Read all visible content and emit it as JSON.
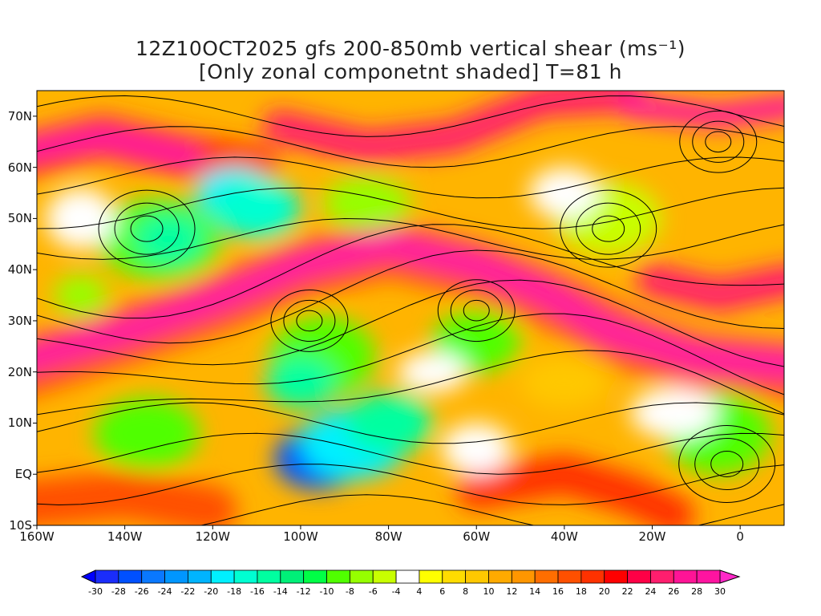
{
  "title": {
    "line1": "12Z10OCT2025 gfs 200-850mb vertical shear (ms⁻¹)",
    "line2": "[Only zonal componetnt shaded] T=81 h"
  },
  "map": {
    "lon_range": [
      -160,
      10
    ],
    "lat_range": [
      -10,
      75
    ],
    "lat_ticks": [
      {
        "value": 70,
        "label": "70N"
      },
      {
        "value": 60,
        "label": "60N"
      },
      {
        "value": 50,
        "label": "50N"
      },
      {
        "value": 40,
        "label": "40N"
      },
      {
        "value": 30,
        "label": "30N"
      },
      {
        "value": 20,
        "label": "20N"
      },
      {
        "value": 10,
        "label": "10N"
      },
      {
        "value": 0,
        "label": "EQ"
      },
      {
        "value": -10,
        "label": "10S"
      }
    ],
    "lon_ticks": [
      {
        "value": -160,
        "label": "160W"
      },
      {
        "value": -140,
        "label": "140W"
      },
      {
        "value": -120,
        "label": "120W"
      },
      {
        "value": -100,
        "label": "100W"
      },
      {
        "value": -80,
        "label": "80W"
      },
      {
        "value": -60,
        "label": "60W"
      },
      {
        "value": -40,
        "label": "40W"
      },
      {
        "value": -20,
        "label": "20W"
      },
      {
        "value": 0,
        "label": "0"
      }
    ]
  },
  "colorbar": {
    "labels": [
      "-30",
      "-28",
      "-26",
      "-24",
      "-22",
      "-20",
      "-18",
      "-16",
      "-14",
      "-12",
      "-10",
      "-8",
      "-6",
      "-4",
      "4",
      "6",
      "8",
      "10",
      "12",
      "14",
      "16",
      "18",
      "20",
      "22",
      "24",
      "26",
      "28",
      "30"
    ],
    "colors": [
      "#1a2dfa",
      "#0050ff",
      "#0a78ff",
      "#0096ff",
      "#00b4ff",
      "#00f0ff",
      "#00ffd2",
      "#00ffa0",
      "#00f078",
      "#00ff46",
      "#50ff00",
      "#96ff00",
      "#c8ff00",
      "#ffffff",
      "#ffff00",
      "#ffdc00",
      "#ffc800",
      "#ffaa00",
      "#ff9600",
      "#ff6e00",
      "#ff5000",
      "#ff3200",
      "#ff0000",
      "#ff0046",
      "#ff1e6e",
      "#ff1496",
      "#ff14a0"
    ],
    "under_color": "#0000ff",
    "over_color": "#ff28c8"
  }
}
